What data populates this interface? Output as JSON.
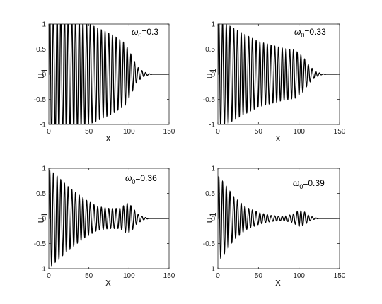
{
  "chart_data": [
    {
      "type": "line",
      "annotation": {
        "symbol": "ω",
        "sub": "0",
        "value": "=0.3"
      },
      "xlabel": "x",
      "ylabel": {
        "base": "u",
        "sub": "1"
      },
      "xlim": [
        0,
        150
      ],
      "ylim": [
        -1,
        1
      ],
      "xticks": [
        "0",
        "50",
        "100",
        "150"
      ],
      "yticks": [
        "-1",
        "-0.5",
        "0",
        "0.5",
        "1"
      ],
      "signal": {
        "period": 4.6,
        "envelope": [
          [
            0,
            1.3
          ],
          [
            20,
            1.25
          ],
          [
            50,
            1.0
          ],
          [
            80,
            0.78
          ],
          [
            95,
            0.62
          ],
          [
            104,
            0.35
          ],
          [
            110,
            0.15
          ],
          [
            118,
            0.05
          ],
          [
            125,
            0.01
          ],
          [
            130,
            0.0
          ],
          [
            150,
            0.0
          ]
        ]
      }
    },
    {
      "type": "line",
      "annotation": {
        "symbol": "ω",
        "sub": "0",
        "value": "=0.33"
      },
      "xlabel": "x",
      "ylabel": {
        "base": "u",
        "sub": "1"
      },
      "xlim": [
        0,
        150
      ],
      "ylim": [
        -1,
        1
      ],
      "xticks": [
        "0",
        "50",
        "100",
        "150"
      ],
      "yticks": [
        "-1",
        "-0.5",
        "0",
        "0.5",
        "1"
      ],
      "signal": {
        "period": 4.6,
        "envelope": [
          [
            0,
            1.1
          ],
          [
            10,
            1.0
          ],
          [
            30,
            0.82
          ],
          [
            50,
            0.65
          ],
          [
            80,
            0.52
          ],
          [
            95,
            0.48
          ],
          [
            105,
            0.35
          ],
          [
            112,
            0.18
          ],
          [
            120,
            0.06
          ],
          [
            128,
            0.01
          ],
          [
            135,
            0.0
          ],
          [
            150,
            0.0
          ]
        ]
      }
    },
    {
      "type": "line",
      "annotation": {
        "symbol": "ω",
        "sub": "0",
        "value": "=0.36"
      },
      "xlabel": "x",
      "ylabel": {
        "base": "u",
        "sub": "1"
      },
      "xlim": [
        0,
        150
      ],
      "ylim": [
        -1,
        1
      ],
      "xticks": [
        "0",
        "50",
        "100",
        "150"
      ],
      "yticks": [
        "-1",
        "-0.5",
        "0",
        "0.5",
        "1"
      ],
      "signal": {
        "period": 4.6,
        "envelope": [
          [
            0,
            0.98
          ],
          [
            10,
            0.85
          ],
          [
            25,
            0.62
          ],
          [
            45,
            0.38
          ],
          [
            60,
            0.24
          ],
          [
            75,
            0.2
          ],
          [
            88,
            0.2
          ],
          [
            98,
            0.3
          ],
          [
            103,
            0.25
          ],
          [
            110,
            0.1
          ],
          [
            118,
            0.03
          ],
          [
            125,
            0.0
          ],
          [
            150,
            0.0
          ]
        ]
      }
    },
    {
      "type": "line",
      "annotation": {
        "symbol": "ω",
        "sub": "0",
        "value": "=0.39"
      },
      "xlabel": "x",
      "ylabel": {
        "base": "u",
        "sub": "1"
      },
      "xlim": [
        0,
        150
      ],
      "ylim": [
        -1,
        1
      ],
      "xticks": [
        "0",
        "50",
        "100",
        "150"
      ],
      "yticks": [
        "-1",
        "-0.5",
        "0",
        "0.5",
        "1"
      ],
      "signal": {
        "period": 4.6,
        "envelope": [
          [
            0,
            0.85
          ],
          [
            8,
            0.7
          ],
          [
            20,
            0.42
          ],
          [
            35,
            0.22
          ],
          [
            50,
            0.12
          ],
          [
            65,
            0.06
          ],
          [
            80,
            0.04
          ],
          [
            92,
            0.08
          ],
          [
            100,
            0.16
          ],
          [
            106,
            0.14
          ],
          [
            112,
            0.06
          ],
          [
            118,
            0.02
          ],
          [
            125,
            0.0
          ],
          [
            150,
            0.0
          ]
        ]
      }
    }
  ]
}
